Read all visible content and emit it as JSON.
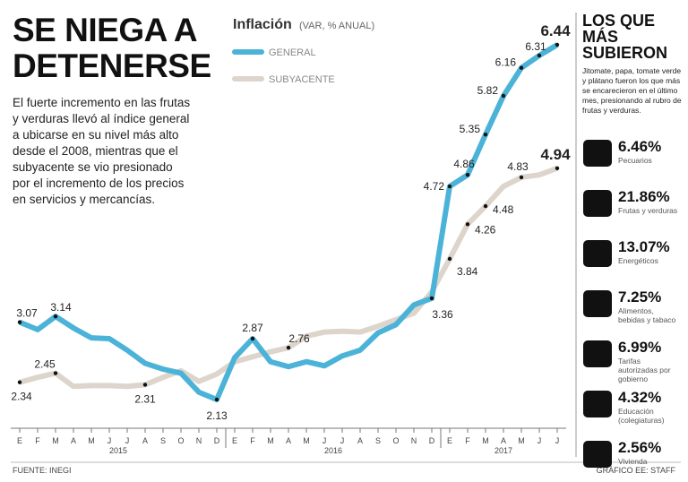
{
  "header": {
    "title": "SE NIEGA A DETENERSE",
    "body": "El fuerte incremento en las frutas y verduras llevó al índice general a ubicarse en su nivel más alto desde el 2008, mientras que el subyacente se vio presionado por el incremento de los precios en servicios y mercancías."
  },
  "chart_data": {
    "type": "line",
    "title": "Inflación",
    "subtitle": "(VAR, % ANUAL)",
    "categories": [
      "E",
      "F",
      "M",
      "A",
      "M",
      "J",
      "J",
      "A",
      "S",
      "O",
      "N",
      "D",
      "E",
      "F",
      "M",
      "A",
      "M",
      "J",
      "J",
      "A",
      "S",
      "O",
      "N",
      "D",
      "E",
      "F",
      "M",
      "A",
      "M",
      "J",
      "J"
    ],
    "year_labels": [
      "2015",
      "2016",
      "2017"
    ],
    "series": [
      {
        "name": "GENERAL",
        "color": "#4bb3d8",
        "values": [
          3.07,
          2.98,
          3.14,
          3.0,
          2.88,
          2.87,
          2.73,
          2.57,
          2.5,
          2.45,
          2.22,
          2.13,
          2.64,
          2.87,
          2.59,
          2.53,
          2.59,
          2.54,
          2.66,
          2.73,
          2.94,
          3.04,
          3.28,
          3.36,
          4.72,
          4.86,
          5.35,
          5.82,
          6.16,
          6.31,
          6.44
        ],
        "label_points": [
          0,
          2,
          11,
          13,
          23,
          24,
          25,
          26,
          27,
          28,
          29,
          30
        ]
      },
      {
        "name": "SUBYACENTE",
        "color": "#ddd5cc",
        "values": [
          2.34,
          2.4,
          2.45,
          2.29,
          2.3,
          2.3,
          2.29,
          2.31,
          2.4,
          2.48,
          2.35,
          2.44,
          2.59,
          2.65,
          2.71,
          2.76,
          2.9,
          2.95,
          2.96,
          2.95,
          3.02,
          3.1,
          3.18,
          3.44,
          3.84,
          4.26,
          4.48,
          4.72,
          4.83,
          4.86,
          4.94
        ],
        "label_points": [
          0,
          2,
          7,
          15,
          24,
          25,
          26,
          28,
          30
        ]
      }
    ]
  },
  "footer": {
    "source": "FUENTE: INEGI",
    "credit": "GRÁFICO EE: STAFF"
  },
  "sidebar": {
    "title": "LOS QUE MÁS SUBIERON",
    "description": "Jitomate, papa, tomate verde y plátano fueron los que más se encarecieron en el último mes, presionando al rubro de frutas y verduras.",
    "items": [
      {
        "value": "6.46%",
        "label": "Pecuarios"
      },
      {
        "value": "21.86%",
        "label": "Frutas y verduras"
      },
      {
        "value": "13.07%",
        "label": "Energéticos"
      },
      {
        "value": "7.25%",
        "label": "Alimentos, bebidas y tabaco"
      },
      {
        "value": "6.99%",
        "label": "Tarifas autorizadas por gobierno"
      },
      {
        "value": "4.32%",
        "label": "Educación (colegiaturas)"
      },
      {
        "value": "2.56%",
        "label": "Vivienda"
      }
    ]
  }
}
